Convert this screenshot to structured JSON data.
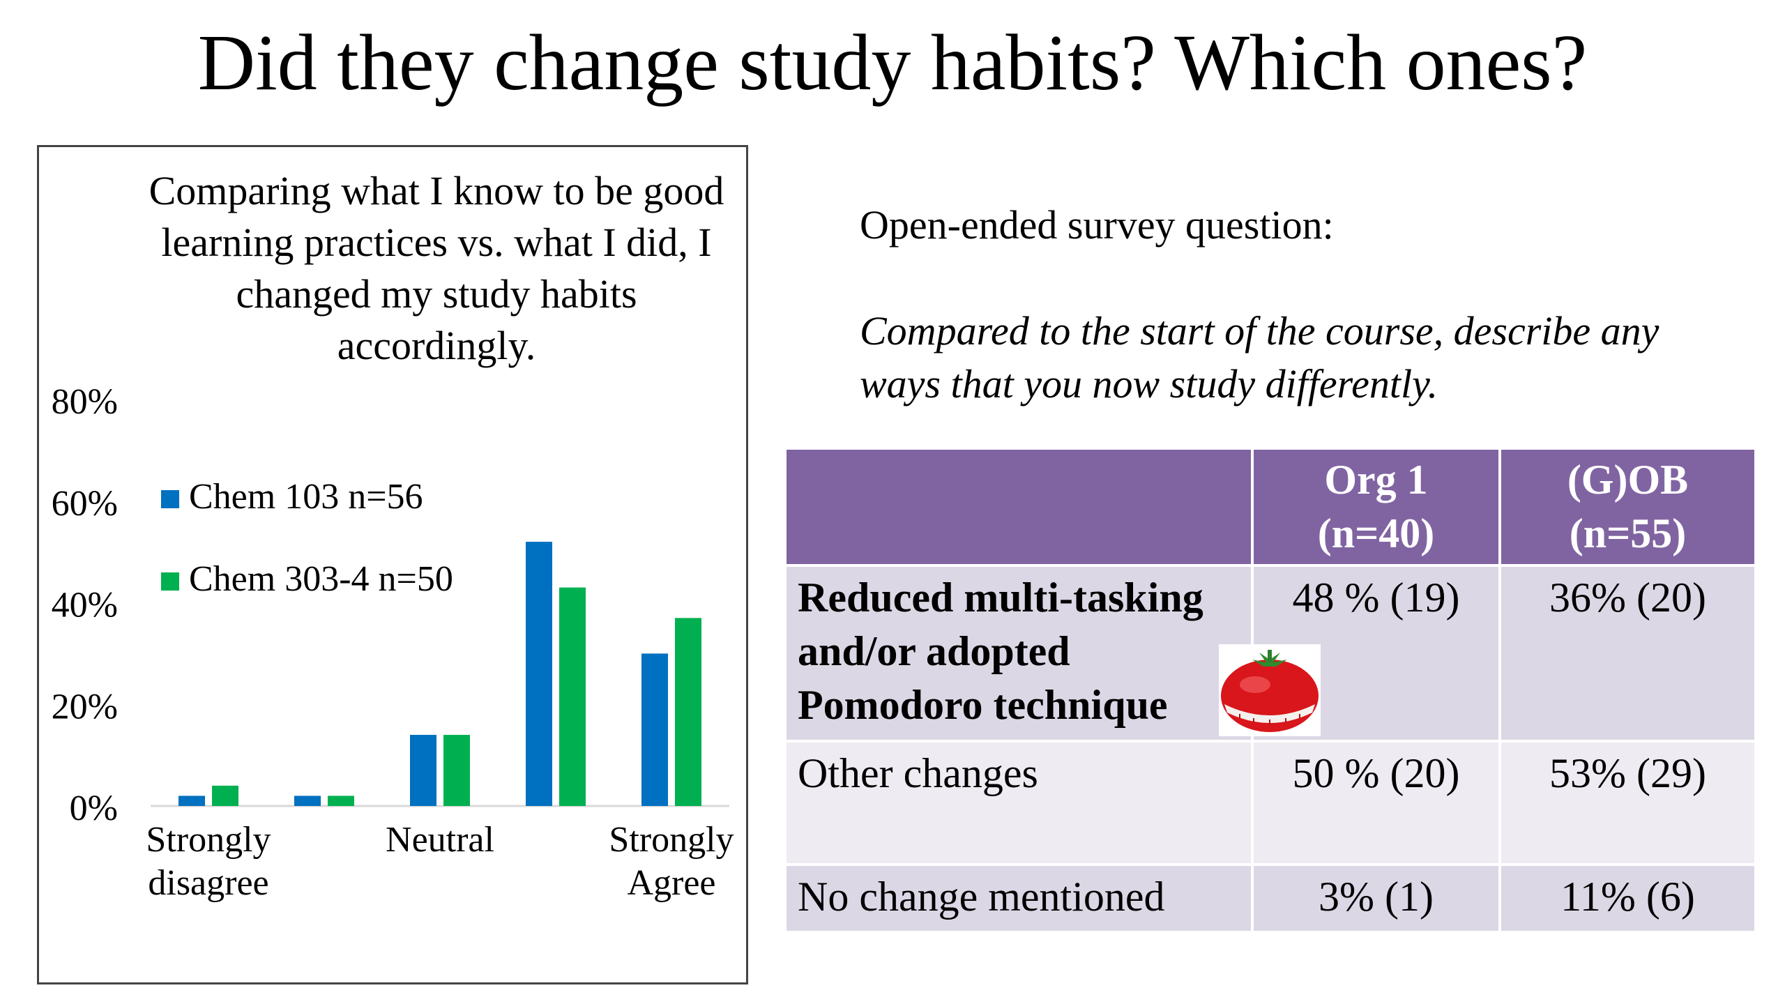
{
  "slide": {
    "title": "Did they change study habits?  Which ones?"
  },
  "chart_data": {
    "type": "bar",
    "title": "Comparing what I know to be good learning practices vs. what I did, I changed my study habits accordingly.",
    "categories": [
      "Strongly disagree",
      "",
      "Neutral",
      "",
      "Strongly Agree"
    ],
    "category_labels": [
      [
        "Strongly",
        "disagree"
      ],
      [],
      [
        "Neutral"
      ],
      [],
      [
        "Strongly",
        "Agree"
      ]
    ],
    "series": [
      {
        "name": "Chem 103 n=56",
        "values": [
          2,
          2,
          14,
          52,
          30
        ],
        "color": "#0070c0"
      },
      {
        "name": "Chem 303-4 n=50",
        "values": [
          4,
          2,
          14,
          43,
          37
        ],
        "color": "#00b050"
      }
    ],
    "yticks": [
      "0%",
      "20%",
      "40%",
      "60%",
      "80%"
    ],
    "ylim": [
      0,
      80
    ],
    "grid": false,
    "legend_position": "top-left"
  },
  "survey": {
    "label": "Open-ended survey question:",
    "question": "Compared to the start of the course, describe any ways that you now study differently."
  },
  "table": {
    "headers": [
      "",
      "Org 1\n(n=40)",
      "(G)OB\n(n=55)"
    ],
    "header_lines": [
      [
        "Org 1",
        "(n=40)"
      ],
      [
        "(G)OB",
        "(n=55)"
      ]
    ],
    "rows": [
      {
        "label_lines": [
          "Reduced multi-tasking",
          "and/or adopted",
          "Pomodoro technique"
        ],
        "org1": "48 % (19)",
        "gob": "36% (20)",
        "bold": true
      },
      {
        "label": "Other changes",
        "org1": "50 % (20)",
        "gob": "53% (29)",
        "bold": false
      },
      {
        "label": "No change mentioned",
        "org1": "3% (1)",
        "gob": "11% (6)",
        "bold": false
      }
    ]
  },
  "colors": {
    "header_purple": "#8064a2",
    "row_dark": "#dcd7e5",
    "row_light": "#eeebf2",
    "tomato_red": "#d8161b"
  }
}
